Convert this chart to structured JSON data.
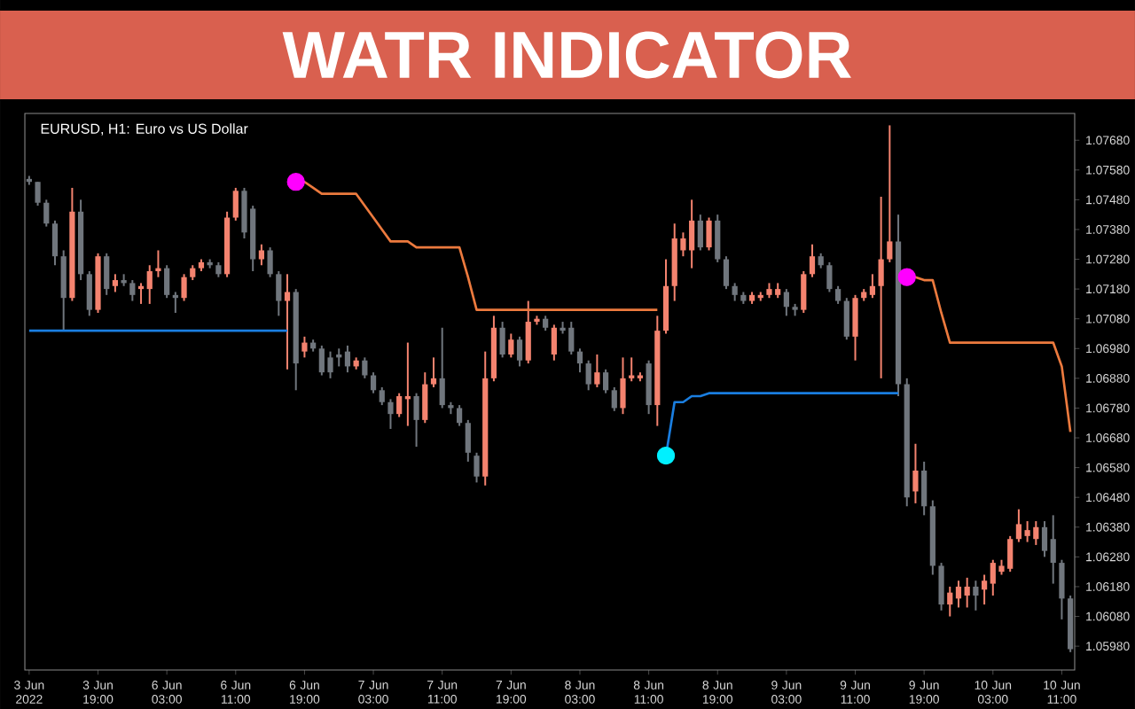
{
  "chart_data": {
    "type": "candlestick",
    "title": "WATR INDICATOR",
    "subtitle": "EURUSD, H1: Euro vs US Dollar",
    "categories": [
      "3 Jun 2022",
      null,
      null,
      null,
      null,
      null,
      null,
      null,
      "3 Jun 19:00",
      null,
      null,
      null,
      null,
      null,
      null,
      null,
      "6 Jun 03:00",
      null,
      null,
      null,
      null,
      null,
      null,
      null,
      "6 Jun 11:00",
      null,
      null,
      null,
      null,
      null,
      null,
      null,
      "6 Jun 19:00",
      null,
      null,
      null,
      null,
      null,
      null,
      null,
      "7 Jun 03:00",
      null,
      null,
      null,
      null,
      null,
      null,
      null,
      "7 Jun 11:00",
      null,
      null,
      null,
      null,
      null,
      null,
      null,
      "7 Jun 19:00",
      null,
      null,
      null,
      null,
      null,
      null,
      null,
      "8 Jun 03:00",
      null,
      null,
      null,
      null,
      null,
      null,
      null,
      "8 Jun 11:00",
      null,
      null,
      null,
      null,
      null,
      null,
      null,
      "8 Jun 19:00",
      null,
      null,
      null,
      null,
      null,
      null,
      null,
      "9 Jun 03:00",
      null,
      null,
      null,
      null,
      null,
      null,
      null,
      "9 Jun 11:00",
      null,
      null,
      null,
      null,
      null,
      null,
      null,
      "9 Jun 19:00",
      null,
      null,
      null,
      null,
      null,
      null,
      null,
      "10 Jun 03:00",
      null,
      null,
      null,
      null,
      null,
      null,
      null,
      "10 Jun 11:00",
      null
    ],
    "ohlc": [
      [
        1.0755,
        1.0756,
        1.0753,
        1.0754
      ],
      [
        1.0754,
        1.0754,
        1.0746,
        1.0747
      ],
      [
        1.0747,
        1.0748,
        1.0739,
        1.074
      ],
      [
        1.074,
        1.0741,
        1.0726,
        1.0729
      ],
      [
        1.0729,
        1.0731,
        1.0704,
        1.0715
      ],
      [
        1.0715,
        1.0752,
        1.0714,
        1.0744
      ],
      [
        1.0744,
        1.0748,
        1.0721,
        1.0723
      ],
      [
        1.0723,
        1.0724,
        1.0709,
        1.0711
      ],
      [
        1.0711,
        1.073,
        1.071,
        1.0729
      ],
      [
        1.0729,
        1.073,
        1.0716,
        1.0718
      ],
      [
        1.0719,
        1.0723,
        1.0717,
        1.0721
      ],
      [
        1.0721,
        1.0723,
        1.0719,
        1.072
      ],
      [
        1.072,
        1.0721,
        1.0714,
        1.0716
      ],
      [
        1.0718,
        1.072,
        1.0713,
        1.0719
      ],
      [
        1.0718,
        1.0726,
        1.0713,
        1.0724
      ],
      [
        1.0724,
        1.0731,
        1.0722,
        1.0725
      ],
      [
        1.0725,
        1.0726,
        1.0715,
        1.0716
      ],
      [
        1.0716,
        1.0717,
        1.071,
        1.0715
      ],
      [
        1.0715,
        1.0723,
        1.0714,
        1.0722
      ],
      [
        1.0722,
        1.0726,
        1.0721,
        1.0725
      ],
      [
        1.0725,
        1.0728,
        1.0724,
        1.0727
      ],
      [
        1.0727,
        1.0728,
        1.0725,
        1.0726
      ],
      [
        1.0726,
        1.0727,
        1.0722,
        1.0723
      ],
      [
        1.0723,
        1.0744,
        1.0722,
        1.0742
      ],
      [
        1.0742,
        1.0752,
        1.0741,
        1.0751
      ],
      [
        1.0751,
        1.0752,
        1.0735,
        1.0737
      ],
      [
        1.0745,
        1.0746,
        1.0724,
        1.0728
      ],
      [
        1.0728,
        1.0733,
        1.0726,
        1.0731
      ],
      [
        1.0731,
        1.0732,
        1.0722,
        1.0723
      ],
      [
        1.0723,
        1.0724,
        1.0709,
        1.0714
      ],
      [
        1.0714,
        1.0723,
        1.0691,
        1.0717
      ],
      [
        1.0717,
        1.0718,
        1.0684,
        1.0693
      ],
      [
        1.0697,
        1.0702,
        1.0695,
        1.07
      ],
      [
        1.07,
        1.0701,
        1.0697,
        1.0698
      ],
      [
        1.0698,
        1.0699,
        1.0689,
        1.069
      ],
      [
        1.0695,
        1.0697,
        1.0688,
        1.069
      ],
      [
        1.0696,
        1.0698,
        1.0692,
        1.0695
      ],
      [
        1.0697,
        1.0699,
        1.069,
        1.0692
      ],
      [
        1.0692,
        1.0695,
        1.0691,
        1.0694
      ],
      [
        1.0694,
        1.0695,
        1.0688,
        1.0689
      ],
      [
        1.0689,
        1.069,
        1.0683,
        1.0684
      ],
      [
        1.0684,
        1.0685,
        1.0679,
        1.068
      ],
      [
        1.068,
        1.0681,
        1.0671,
        1.0676
      ],
      [
        1.0676,
        1.0683,
        1.0675,
        1.0682
      ],
      [
        1.0681,
        1.07,
        1.0672,
        1.0682
      ],
      [
        1.0682,
        1.0683,
        1.0665,
        1.0674
      ],
      [
        1.0674,
        1.069,
        1.0673,
        1.0686
      ],
      [
        1.0686,
        1.0695,
        1.0685,
        1.0688
      ],
      [
        1.0688,
        1.0705,
        1.0678,
        1.0679
      ],
      [
        1.0679,
        1.068,
        1.0676,
        1.0678
      ],
      [
        1.0678,
        1.0679,
        1.0672,
        1.0673
      ],
      [
        1.0673,
        1.0674,
        1.066,
        1.0663
      ],
      [
        1.0662,
        1.0663,
        1.0653,
        1.0655
      ],
      [
        1.0655,
        1.0697,
        1.0652,
        1.0688
      ],
      [
        1.0688,
        1.0709,
        1.0687,
        1.0705
      ],
      [
        1.0705,
        1.0707,
        1.0695,
        1.0696
      ],
      [
        1.0696,
        1.0703,
        1.0695,
        1.0701
      ],
      [
        1.0701,
        1.0702,
        1.0692,
        1.0694
      ],
      [
        1.0694,
        1.0714,
        1.0693,
        1.0707
      ],
      [
        1.0707,
        1.0709,
        1.0706,
        1.0708
      ],
      [
        1.0708,
        1.0709,
        1.0704,
        1.0705
      ],
      [
        1.0696,
        1.0706,
        1.0694,
        1.0705
      ],
      [
        1.0705,
        1.0707,
        1.0703,
        1.0704
      ],
      [
        1.0705,
        1.0707,
        1.0696,
        1.0697
      ],
      [
        1.0697,
        1.0698,
        1.069,
        1.0693
      ],
      [
        1.0693,
        1.0694,
        1.0684,
        1.0686
      ],
      [
        1.0686,
        1.0696,
        1.0685,
        1.069
      ],
      [
        1.069,
        1.0691,
        1.0683,
        1.0684
      ],
      [
        1.0684,
        1.0685,
        1.0677,
        1.0678
      ],
      [
        1.0678,
        1.0695,
        1.0676,
        1.0688
      ],
      [
        1.0688,
        1.0695,
        1.0687,
        1.0689
      ],
      [
        1.0688,
        1.069,
        1.0687,
        1.0689
      ],
      [
        1.0693,
        1.0694,
        1.0676,
        1.0679
      ],
      [
        1.0679,
        1.0709,
        1.0672,
        1.0704
      ],
      [
        1.0704,
        1.0728,
        1.0703,
        1.0719
      ],
      [
        1.0719,
        1.074,
        1.0714,
        1.0735
      ],
      [
        1.0731,
        1.0737,
        1.0729,
        1.0735
      ],
      [
        1.0731,
        1.0748,
        1.0725,
        1.0741
      ],
      [
        1.0741,
        1.0743,
        1.0731,
        1.0732
      ],
      [
        1.0732,
        1.0742,
        1.0731,
        1.0741
      ],
      [
        1.0741,
        1.0743,
        1.0727,
        1.0728
      ],
      [
        1.0728,
        1.0729,
        1.0718,
        1.0719
      ],
      [
        1.0719,
        1.072,
        1.0714,
        1.0716
      ],
      [
        1.0716,
        1.0717,
        1.0713,
        1.0714
      ],
      [
        1.0714,
        1.0717,
        1.0713,
        1.0716
      ],
      [
        1.0715,
        1.0717,
        1.0714,
        1.0716
      ],
      [
        1.0716,
        1.072,
        1.0715,
        1.0718
      ],
      [
        1.0716,
        1.072,
        1.0715,
        1.0718
      ],
      [
        1.0717,
        1.0718,
        1.0709,
        1.0712
      ],
      [
        1.0712,
        1.0713,
        1.0709,
        1.0711
      ],
      [
        1.0711,
        1.0724,
        1.071,
        1.0723
      ],
      [
        1.0723,
        1.0733,
        1.0722,
        1.0729
      ],
      [
        1.0729,
        1.073,
        1.0725,
        1.0726
      ],
      [
        1.0726,
        1.0727,
        1.0717,
        1.0718
      ],
      [
        1.0718,
        1.0719,
        1.0713,
        1.0714
      ],
      [
        1.0714,
        1.0715,
        1.0701,
        1.0702
      ],
      [
        1.0702,
        1.0716,
        1.0694,
        1.0715
      ],
      [
        1.0715,
        1.0718,
        1.0714,
        1.0717
      ],
      [
        1.0716,
        1.0723,
        1.0715,
        1.0719
      ],
      [
        1.0719,
        1.0749,
        1.0688,
        1.0728
      ],
      [
        1.0728,
        1.0773,
        1.0727,
        1.0734
      ],
      [
        1.0734,
        1.0743,
        1.0682,
        1.0686
      ],
      [
        1.0686,
        1.0688,
        1.0645,
        1.0648
      ],
      [
        1.065,
        1.0666,
        1.0646,
        1.0657
      ],
      [
        1.0657,
        1.066,
        1.0642,
        1.0645
      ],
      [
        1.0645,
        1.0647,
        1.0622,
        1.0625
      ],
      [
        1.0625,
        1.0626,
        1.061,
        1.0612
      ],
      [
        1.0612,
        1.0618,
        1.0608,
        1.0616
      ],
      [
        1.0614,
        1.062,
        1.0611,
        1.0618
      ],
      [
        1.0615,
        1.0621,
        1.0611,
        1.0618
      ],
      [
        1.0618,
        1.062,
        1.061,
        1.0615
      ],
      [
        1.0617,
        1.0622,
        1.0612,
        1.062
      ],
      [
        1.0619,
        1.0627,
        1.0615,
        1.0626
      ],
      [
        1.0623,
        1.0627,
        1.0622,
        1.0625
      ],
      [
        1.0624,
        1.0635,
        1.0623,
        1.0634
      ],
      [
        1.0634,
        1.0644,
        1.0633,
        1.0639
      ],
      [
        1.0635,
        1.064,
        1.0633,
        1.0637
      ],
      [
        1.0634,
        1.064,
        1.0632,
        1.0638
      ],
      [
        1.0638,
        1.064,
        1.0628,
        1.063
      ],
      [
        1.0634,
        1.0642,
        1.0619,
        1.0626
      ],
      [
        1.0626,
        1.0627,
        1.0607,
        1.0614
      ],
      [
        1.0614,
        1.0615,
        1.0596,
        1.0597
      ]
    ],
    "colors": [
      "#70767d",
      "#70767d",
      "#70767d",
      "#70767d",
      "#70767d",
      "#f4836f",
      "#70767d",
      "#70767d",
      "#f4836f",
      "#70767d",
      "#f4836f",
      "#70767d",
      "#70767d",
      "#f4836f",
      "#f4836f",
      "#f4836f",
      "#70767d",
      "#70767d",
      "#f4836f",
      "#f4836f",
      "#f4836f",
      "#70767d",
      "#70767d",
      "#f4836f",
      "#f4836f",
      "#70767d",
      "#70767d",
      "#f4836f",
      "#70767d",
      "#70767d",
      "#f4836f",
      "#70767d",
      "#f4836f",
      "#70767d",
      "#70767d",
      "#70767d",
      "#70767d",
      "#70767d",
      "#f4836f",
      "#70767d",
      "#70767d",
      "#70767d",
      "#70767d",
      "#f4836f",
      "#f4836f",
      "#70767d",
      "#f4836f",
      "#f4836f",
      "#70767d",
      "#70767d",
      "#70767d",
      "#70767d",
      "#70767d",
      "#f4836f",
      "#f4836f",
      "#70767d",
      "#f4836f",
      "#70767d",
      "#f4836f",
      "#f4836f",
      "#70767d",
      "#f4836f",
      "#70767d",
      "#70767d",
      "#70767d",
      "#70767d",
      "#f4836f",
      "#70767d",
      "#70767d",
      "#f4836f",
      "#f4836f",
      "#f4836f",
      "#70767d",
      "#f4836f",
      "#f4836f",
      "#f4836f",
      "#f4836f",
      "#f4836f",
      "#70767d",
      "#f4836f",
      "#70767d",
      "#70767d",
      "#70767d",
      "#70767d",
      "#f4836f",
      "#f4836f",
      "#f4836f",
      "#f4836f",
      "#70767d",
      "#70767d",
      "#f4836f",
      "#f4836f",
      "#70767d",
      "#70767d",
      "#70767d",
      "#70767d",
      "#f4836f",
      "#f4836f",
      "#f4836f",
      "#f4836f",
      "#f4836f",
      "#70767d",
      "#70767d",
      "#f4836f",
      "#70767d",
      "#70767d",
      "#70767d",
      "#f4836f",
      "#f4836f",
      "#f4836f",
      "#70767d",
      "#f4836f",
      "#f4836f",
      "#f4836f",
      "#f4836f",
      "#f4836f",
      "#f4836f",
      "#f4836f",
      "#70767d",
      "#70767d",
      "#70767d",
      "#70767d"
    ],
    "series": [
      {
        "type": "line",
        "color": "#ec7a3e",
        "values": [
          null,
          null,
          null,
          null,
          null,
          null,
          null,
          null,
          null,
          null,
          null,
          null,
          null,
          null,
          null,
          null,
          null,
          null,
          null,
          null,
          null,
          null,
          null,
          null,
          null,
          null,
          null,
          null,
          null,
          null,
          null,
          1.0754,
          1.0754,
          1.0752,
          1.075,
          1.075,
          1.075,
          1.075,
          1.075,
          1.0746,
          1.0742,
          1.0738,
          1.0734,
          1.0734,
          1.0734,
          1.0732,
          1.0732,
          1.0732,
          1.0732,
          1.0732,
          1.0732,
          1.0722,
          1.0711,
          1.0711,
          1.0711,
          1.0711,
          1.0711,
          1.0711,
          1.0711,
          1.0711,
          1.0711,
          1.0711,
          1.0711,
          1.0711,
          1.0711,
          1.0711,
          1.0711,
          1.0711,
          1.0711,
          1.0711,
          1.0711,
          1.0711,
          1.0711,
          1.0711,
          null,
          null,
          null,
          null,
          null,
          null,
          null,
          null,
          null,
          null,
          null,
          null,
          null,
          null,
          null,
          null,
          null,
          null,
          null,
          null,
          null,
          null,
          null,
          null,
          null,
          null,
          null,
          null,
          1.0722,
          1.0722,
          1.0721,
          1.0721,
          1.071,
          1.07,
          1.07,
          1.07,
          1.07,
          1.07,
          1.07,
          1.07,
          1.07,
          1.07,
          1.07,
          1.07,
          1.07,
          1.07,
          1.0692,
          1.067
        ]
      },
      {
        "type": "line",
        "color": "#1a7ee0",
        "values": [
          1.0704,
          1.0704,
          1.0704,
          1.0704,
          1.0704,
          1.0704,
          1.0704,
          1.0704,
          1.0704,
          1.0704,
          1.0704,
          1.0704,
          1.0704,
          1.0704,
          1.0704,
          1.0704,
          1.0704,
          1.0704,
          1.0704,
          1.0704,
          1.0704,
          1.0704,
          1.0704,
          1.0704,
          1.0704,
          1.0704,
          1.0704,
          1.0704,
          1.0704,
          1.0704,
          1.0704,
          null,
          null,
          null,
          null,
          null,
          null,
          null,
          null,
          null,
          null,
          null,
          null,
          null,
          null,
          null,
          null,
          null,
          null,
          null,
          null,
          null,
          null,
          null,
          null,
          null,
          null,
          null,
          null,
          null,
          null,
          null,
          null,
          null,
          null,
          null,
          null,
          null,
          null,
          null,
          null,
          null,
          null,
          null,
          1.0662,
          1.068,
          1.068,
          1.0682,
          1.0682,
          1.0683,
          1.0683,
          1.0683,
          1.0683,
          1.0683,
          1.0683,
          1.0683,
          1.0683,
          1.0683,
          1.0683,
          1.0683,
          1.0683,
          1.0683,
          1.0683,
          1.0683,
          1.0683,
          1.0683,
          1.0683,
          1.0683,
          1.0683,
          1.0683,
          1.0683,
          1.0683,
          null,
          null,
          null,
          null,
          null,
          null,
          null,
          null,
          null,
          null,
          null,
          null,
          null,
          null,
          null,
          null,
          null,
          null,
          null,
          null
        ]
      },
      {
        "type": "scatter",
        "color": "#ff00ff",
        "marker": "circle",
        "values": [
          null,
          null,
          null,
          null,
          null,
          null,
          null,
          null,
          null,
          null,
          null,
          null,
          null,
          null,
          null,
          null,
          null,
          null,
          null,
          null,
          null,
          null,
          null,
          null,
          null,
          null,
          null,
          null,
          null,
          null,
          null,
          1.0754,
          null,
          null,
          null,
          null,
          null,
          null,
          null,
          null,
          null,
          null,
          null,
          null,
          null,
          null,
          null,
          null,
          null,
          null,
          null,
          null,
          null,
          null,
          null,
          null,
          null,
          null,
          null,
          null,
          null,
          null,
          null,
          null,
          null,
          null,
          null,
          null,
          null,
          null,
          null,
          null,
          null,
          null,
          null,
          null,
          null,
          null,
          null,
          null,
          null,
          null,
          null,
          null,
          null,
          null,
          null,
          null,
          null,
          null,
          null,
          null,
          null,
          null,
          null,
          null,
          null,
          null,
          null,
          null,
          null,
          null,
          1.0722,
          null,
          null,
          null,
          null,
          null,
          null,
          null,
          null,
          null,
          null,
          null,
          null,
          null,
          null,
          null,
          null,
          null,
          null,
          null
        ]
      },
      {
        "type": "scatter",
        "color": "#00f0ff",
        "marker": "circle",
        "values": [
          null,
          null,
          null,
          null,
          null,
          null,
          null,
          null,
          null,
          null,
          null,
          null,
          null,
          null,
          null,
          null,
          null,
          null,
          null,
          null,
          null,
          null,
          null,
          null,
          null,
          null,
          null,
          null,
          null,
          null,
          null,
          null,
          null,
          null,
          null,
          null,
          null,
          null,
          null,
          null,
          null,
          null,
          null,
          null,
          null,
          null,
          null,
          null,
          null,
          null,
          null,
          null,
          null,
          null,
          null,
          null,
          null,
          null,
          null,
          null,
          null,
          null,
          null,
          null,
          null,
          null,
          null,
          null,
          null,
          null,
          null,
          null,
          null,
          null,
          1.0662,
          null,
          null,
          null,
          null,
          null,
          null,
          null,
          null,
          null,
          null,
          null,
          null,
          null,
          null,
          null,
          null,
          null,
          null,
          null,
          null,
          null,
          null,
          null,
          null,
          null,
          null,
          null,
          null,
          null,
          null,
          null,
          null,
          null,
          null,
          null,
          null,
          null,
          null,
          null,
          null,
          null,
          null,
          null,
          null,
          null,
          null,
          null
        ]
      }
    ],
    "ylim": [
      1.059,
      1.0777
    ],
    "yticks": [
      {
        "value": 1.0598,
        "label": "1.05980"
      },
      {
        "value": 1.0608,
        "label": "1.06080"
      },
      {
        "value": 1.0618,
        "label": "1.06180"
      },
      {
        "value": 1.0628,
        "label": "1.06280"
      },
      {
        "value": 1.0638,
        "label": "1.06380"
      },
      {
        "value": 1.0648,
        "label": "1.06480"
      },
      {
        "value": 1.0658,
        "label": "1.06580"
      },
      {
        "value": 1.0668,
        "label": "1.06680"
      },
      {
        "value": 1.0678,
        "label": "1.06780"
      },
      {
        "value": 1.0688,
        "label": "1.06880"
      },
      {
        "value": 1.0698,
        "label": "1.06980"
      },
      {
        "value": 1.0708,
        "label": "1.07080"
      },
      {
        "value": 1.0718,
        "label": "1.07180"
      },
      {
        "value": 1.0728,
        "label": "1.07280"
      },
      {
        "value": 1.0738,
        "label": "1.07380"
      },
      {
        "value": 1.0748,
        "label": "1.07480"
      },
      {
        "value": 1.0758,
        "label": "1.07580"
      },
      {
        "value": 1.0768,
        "label": "1.07680"
      }
    ]
  }
}
